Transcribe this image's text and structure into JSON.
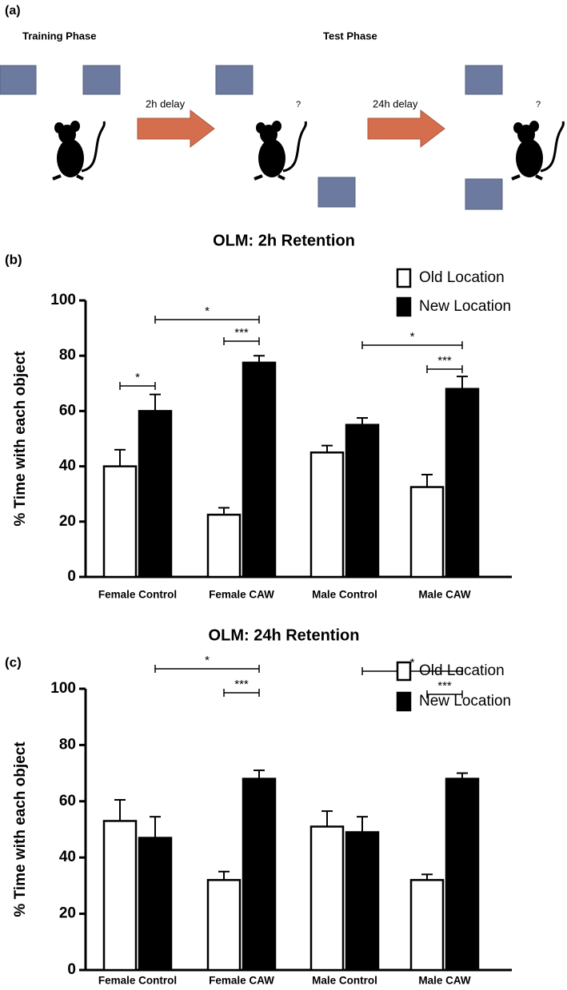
{
  "diagram": {
    "label": "(a)",
    "training_phase": "Training Phase",
    "test_phase": "Test Phase",
    "delay_1": "2h delay",
    "delay_2": "24h delay",
    "question_1": "?",
    "question_2": "?"
  },
  "chart_data": [
    {
      "type": "bar",
      "panel_label": "(b)",
      "title": "OLM: 2h Retention",
      "y_label": "% Time with each object",
      "categories": [
        "Female Control",
        "Female CAW",
        "Male Control",
        "Male CAW"
      ],
      "series": [
        {
          "name": "Old Location",
          "color": "#ffffff",
          "values": [
            40,
            22.5,
            45,
            32.5
          ],
          "errors": [
            6,
            2.5,
            2.5,
            4.5
          ]
        },
        {
          "name": "New Location",
          "color": "#000000",
          "values": [
            60,
            77.5,
            55,
            68
          ],
          "errors": [
            6,
            2.5,
            2.5,
            4.5
          ]
        }
      ],
      "ylim": [
        0,
        100
      ],
      "yticks": [
        0,
        20,
        40,
        60,
        80,
        100
      ],
      "annotations": [
        "*",
        "*",
        "***",
        "*",
        "***"
      ]
    },
    {
      "type": "bar",
      "panel_label": "(c)",
      "title": "OLM: 24h Retention",
      "y_label": "% Time with each object",
      "categories": [
        "Female Control",
        "Female CAW",
        "Male Control",
        "Male CAW"
      ],
      "series": [
        {
          "name": "Old Location",
          "color": "#ffffff",
          "values": [
            53,
            32,
            51,
            32
          ],
          "errors": [
            7.5,
            3,
            5.5,
            2
          ]
        },
        {
          "name": "New Location",
          "color": "#000000",
          "values": [
            47,
            68,
            49,
            68
          ],
          "errors": [
            7.5,
            3,
            5.5,
            2
          ]
        }
      ],
      "ylim": [
        0,
        100
      ],
      "yticks": [
        0,
        20,
        40,
        60,
        80,
        100
      ],
      "annotations": [
        "*",
        "***",
        "*",
        "***"
      ]
    }
  ]
}
